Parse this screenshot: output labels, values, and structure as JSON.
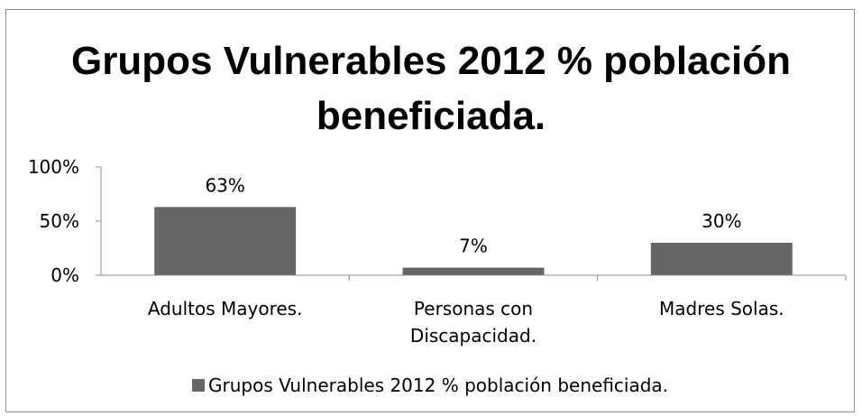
{
  "chart_data": {
    "type": "bar",
    "title_lines": [
      "Grupos Vulnerables 2012 % población",
      "beneficiada."
    ],
    "categories": [
      [
        "Adultos Mayores."
      ],
      [
        "Personas con",
        "Discapacidad."
      ],
      [
        "Madres Solas."
      ]
    ],
    "series": [
      {
        "name": "Grupos Vulnerables 2012 % población beneficiada.",
        "values": [
          63,
          7,
          30
        ],
        "data_labels": [
          "63%",
          "7%",
          "30%"
        ],
        "color": "#666666"
      }
    ],
    "y_ticks": [
      0,
      50,
      100
    ],
    "y_tick_labels": [
      "0%",
      "50%",
      "100%"
    ],
    "ylim": [
      0,
      100
    ],
    "grid": false,
    "legend_position": "bottom",
    "axis_color": "#8c8c8c"
  }
}
